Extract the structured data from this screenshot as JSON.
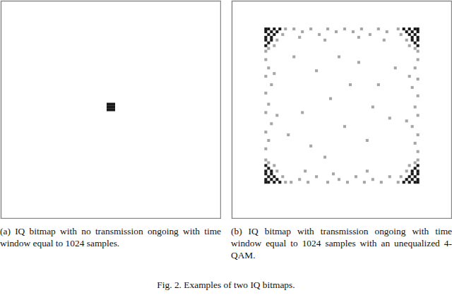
{
  "chart_data": [
    {
      "type": "scatter",
      "caption": "(a) IQ bitmap with no transmission ongoing with time window equal to 1024 samples.",
      "xlim": [
        0,
        78
      ],
      "ylim": [
        78,
        0
      ],
      "tick_labels": false,
      "marker": "square",
      "color": "#000000",
      "cells": [
        [
          38,
          37,
          2
        ],
        [
          39,
          37,
          2
        ],
        [
          40,
          37,
          2
        ],
        [
          38,
          38,
          2
        ],
        [
          39,
          38,
          2
        ],
        [
          40,
          38,
          2
        ],
        [
          38,
          39,
          2
        ],
        [
          39,
          39,
          2
        ],
        [
          40,
          39,
          2
        ]
      ]
    },
    {
      "type": "scatter",
      "caption": "(b) IQ bitmap with transmission ongoing with time window equal to 1024 samples with an unequalized 4-QAM.",
      "xlim": [
        0,
        78
      ],
      "ylim": [
        78,
        0
      ],
      "tick_labels": false,
      "marker": "square",
      "color": "#000000",
      "cells": [
        [
          12,
          10,
          2
        ],
        [
          13,
          10,
          2
        ],
        [
          14,
          11,
          2
        ],
        [
          12,
          11,
          2
        ],
        [
          13,
          12,
          2
        ],
        [
          15,
          10,
          2
        ],
        [
          12,
          13,
          2
        ],
        [
          14,
          13,
          2
        ],
        [
          16,
          11,
          2
        ],
        [
          12,
          14,
          2
        ],
        [
          13,
          15,
          2
        ],
        [
          15,
          12,
          2
        ],
        [
          17,
          10,
          2
        ],
        [
          12,
          16,
          2
        ],
        [
          14,
          14,
          2
        ],
        [
          18,
          12,
          1
        ],
        [
          16,
          14,
          1
        ],
        [
          13,
          17,
          1
        ],
        [
          19,
          10,
          1
        ],
        [
          12,
          18,
          1
        ],
        [
          15,
          16,
          1
        ],
        [
          66,
          10,
          2
        ],
        [
          65,
          10,
          2
        ],
        [
          64,
          11,
          2
        ],
        [
          66,
          11,
          2
        ],
        [
          65,
          12,
          2
        ],
        [
          63,
          10,
          2
        ],
        [
          66,
          13,
          2
        ],
        [
          64,
          13,
          2
        ],
        [
          62,
          11,
          2
        ],
        [
          66,
          14,
          2
        ],
        [
          65,
          15,
          2
        ],
        [
          63,
          12,
          2
        ],
        [
          61,
          10,
          2
        ],
        [
          66,
          16,
          2
        ],
        [
          64,
          14,
          2
        ],
        [
          60,
          12,
          1
        ],
        [
          62,
          14,
          1
        ],
        [
          65,
          17,
          1
        ],
        [
          59,
          10,
          1
        ],
        [
          66,
          18,
          1
        ],
        [
          63,
          16,
          1
        ],
        [
          12,
          65,
          2
        ],
        [
          13,
          65,
          2
        ],
        [
          14,
          64,
          2
        ],
        [
          12,
          64,
          2
        ],
        [
          13,
          63,
          2
        ],
        [
          15,
          65,
          2
        ],
        [
          12,
          62,
          2
        ],
        [
          14,
          62,
          2
        ],
        [
          16,
          64,
          2
        ],
        [
          12,
          61,
          2
        ],
        [
          13,
          60,
          2
        ],
        [
          15,
          63,
          2
        ],
        [
          17,
          65,
          2
        ],
        [
          12,
          59,
          2
        ],
        [
          14,
          61,
          2
        ],
        [
          18,
          63,
          1
        ],
        [
          16,
          61,
          1
        ],
        [
          13,
          58,
          1
        ],
        [
          19,
          65,
          1
        ],
        [
          12,
          57,
          1
        ],
        [
          15,
          59,
          1
        ],
        [
          66,
          65,
          2
        ],
        [
          65,
          65,
          2
        ],
        [
          64,
          64,
          2
        ],
        [
          66,
          64,
          2
        ],
        [
          65,
          63,
          2
        ],
        [
          63,
          65,
          2
        ],
        [
          66,
          62,
          2
        ],
        [
          64,
          62,
          2
        ],
        [
          62,
          64,
          2
        ],
        [
          66,
          61,
          2
        ],
        [
          65,
          60,
          2
        ],
        [
          63,
          63,
          2
        ],
        [
          61,
          65,
          2
        ],
        [
          66,
          59,
          2
        ],
        [
          64,
          61,
          2
        ],
        [
          60,
          63,
          1
        ],
        [
          62,
          61,
          1
        ],
        [
          65,
          58,
          1
        ],
        [
          59,
          65,
          1
        ],
        [
          66,
          57,
          1
        ],
        [
          63,
          59,
          1
        ],
        [
          22,
          10,
          1
        ],
        [
          25,
          11,
          1
        ],
        [
          28,
          10,
          1
        ],
        [
          31,
          12,
          1
        ],
        [
          34,
          10,
          1
        ],
        [
          37,
          11,
          1
        ],
        [
          40,
          10,
          1
        ],
        [
          43,
          11,
          1
        ],
        [
          46,
          10,
          1
        ],
        [
          49,
          12,
          1
        ],
        [
          52,
          10,
          1
        ],
        [
          55,
          11,
          1
        ],
        [
          24,
          13,
          1
        ],
        [
          33,
          14,
          1
        ],
        [
          45,
          13,
          1
        ],
        [
          54,
          14,
          1
        ],
        [
          21,
          65,
          1
        ],
        [
          24,
          64,
          1
        ],
        [
          27,
          65,
          1
        ],
        [
          30,
          63,
          1
        ],
        [
          34,
          65,
          1
        ],
        [
          38,
          64,
          1
        ],
        [
          41,
          65,
          1
        ],
        [
          44,
          63,
          1
        ],
        [
          47,
          65,
          1
        ],
        [
          50,
          64,
          1
        ],
        [
          53,
          65,
          1
        ],
        [
          56,
          63,
          1
        ],
        [
          26,
          61,
          1
        ],
        [
          36,
          62,
          1
        ],
        [
          48,
          61,
          1
        ],
        [
          12,
          21,
          1
        ],
        [
          13,
          24,
          1
        ],
        [
          12,
          27,
          1
        ],
        [
          14,
          30,
          1
        ],
        [
          12,
          33,
          1
        ],
        [
          13,
          37,
          1
        ],
        [
          12,
          40,
          1
        ],
        [
          14,
          44,
          1
        ],
        [
          12,
          47,
          1
        ],
        [
          13,
          50,
          1
        ],
        [
          12,
          53,
          1
        ],
        [
          15,
          26,
          1
        ],
        [
          16,
          41,
          1
        ],
        [
          66,
          21,
          1
        ],
        [
          65,
          24,
          1
        ],
        [
          66,
          28,
          1
        ],
        [
          64,
          31,
          1
        ],
        [
          66,
          34,
          1
        ],
        [
          65,
          38,
          1
        ],
        [
          66,
          41,
          1
        ],
        [
          64,
          45,
          1
        ],
        [
          66,
          48,
          1
        ],
        [
          65,
          51,
          1
        ],
        [
          66,
          54,
          1
        ],
        [
          63,
          27,
          1
        ],
        [
          62,
          43,
          1
        ],
        [
          22,
          20,
          1
        ],
        [
          30,
          25,
          1
        ],
        [
          45,
          22,
          1
        ],
        [
          52,
          30,
          1
        ],
        [
          25,
          40,
          1
        ],
        [
          35,
          35,
          1
        ],
        [
          40,
          45,
          1
        ],
        [
          48,
          50,
          1
        ],
        [
          28,
          52,
          1
        ],
        [
          56,
          42,
          1
        ],
        [
          20,
          48,
          1
        ],
        [
          38,
          20,
          1
        ],
        [
          58,
          24,
          1
        ],
        [
          33,
          56,
          1
        ],
        [
          50,
          38,
          1
        ],
        [
          42,
          30,
          1
        ]
      ]
    }
  ],
  "caption": "Fig. 2. Examples of two IQ bitmaps."
}
